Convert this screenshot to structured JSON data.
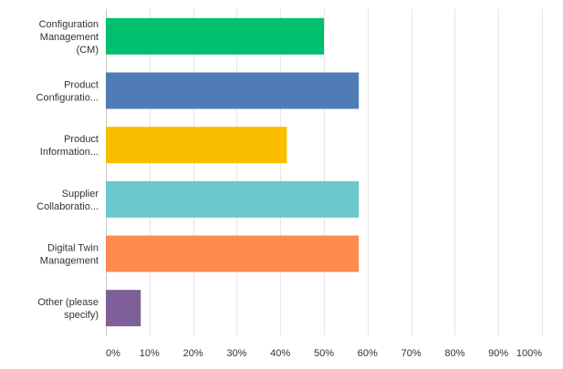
{
  "chart_data": {
    "type": "bar",
    "orientation": "horizontal",
    "categories": [
      [
        "Configuration",
        "Management",
        "(CM)"
      ],
      [
        "Product",
        "Configuratio..."
      ],
      [
        "Product",
        "Information..."
      ],
      [
        "Supplier",
        "Collaboratio..."
      ],
      [
        "Digital Twin",
        "Management"
      ],
      [
        "Other (please",
        "specify)"
      ]
    ],
    "values": [
      50,
      58,
      41.5,
      58,
      58,
      8
    ],
    "colors": [
      "#00bf6f",
      "#507cb6",
      "#f9be00",
      "#6bc8cd",
      "#ff8b4f",
      "#7f5f98"
    ],
    "xlim": [
      0,
      100
    ],
    "xticks": [
      "0%",
      "10%",
      "20%",
      "30%",
      "40%",
      "50%",
      "60%",
      "70%",
      "80%",
      "90%",
      "100%"
    ],
    "grid": true
  }
}
